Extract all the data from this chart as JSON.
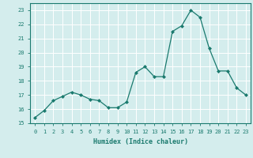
{
  "x": [
    0,
    1,
    2,
    3,
    4,
    5,
    6,
    7,
    8,
    9,
    10,
    11,
    12,
    13,
    14,
    15,
    16,
    17,
    18,
    19,
    20,
    21,
    22,
    23
  ],
  "y": [
    15.4,
    15.9,
    16.6,
    16.9,
    17.2,
    17.0,
    16.7,
    16.6,
    16.1,
    16.1,
    16.5,
    18.6,
    19.0,
    18.3,
    18.3,
    21.5,
    21.9,
    23.0,
    22.5,
    20.3,
    18.7,
    18.7,
    17.5,
    17.0
  ],
  "line_color": "#1a7a6e",
  "marker": "D",
  "marker_size": 2.0,
  "linewidth": 0.9,
  "xlabel": "Humidex (Indice chaleur)",
  "xlim": [
    -0.5,
    23.5
  ],
  "ylim": [
    15,
    23.5
  ],
  "yticks": [
    15,
    16,
    17,
    18,
    19,
    20,
    21,
    22,
    23
  ],
  "xticks": [
    0,
    1,
    2,
    3,
    4,
    5,
    6,
    7,
    8,
    9,
    10,
    11,
    12,
    13,
    14,
    15,
    16,
    17,
    18,
    19,
    20,
    21,
    22,
    23
  ],
  "bg_color": "#d4eded",
  "grid_color": "#ffffff",
  "tick_label_color": "#1a7a6e",
  "xlabel_color": "#1a7a6e",
  "tick_fontsize": 5.0,
  "xlabel_fontsize": 6.0
}
